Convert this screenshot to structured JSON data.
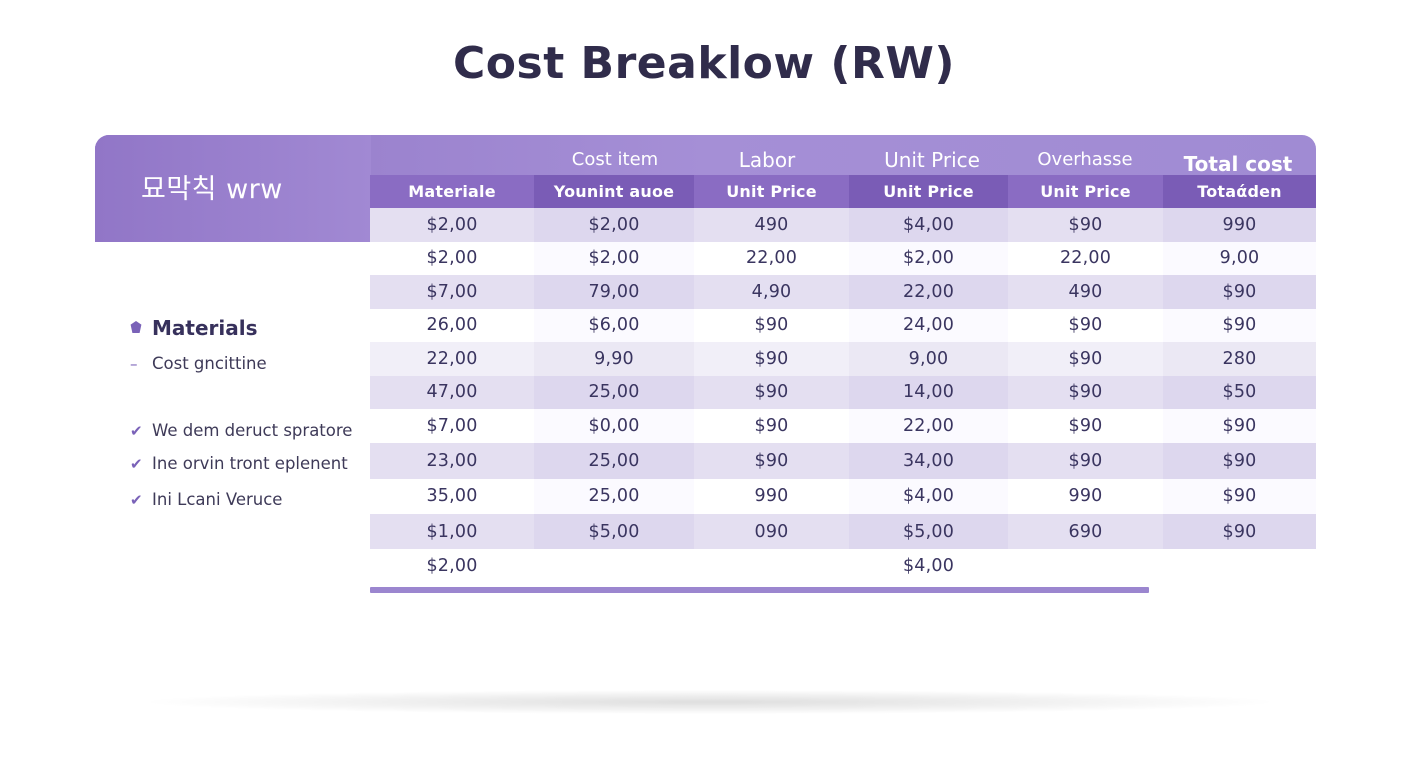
{
  "title": "Cost Breaklow (RW)",
  "card": {
    "label": "묘막칙 wrw"
  },
  "group_headers": [
    "Cost item",
    "Labor",
    "Unit Price",
    "Overhasse",
    "Total cost"
  ],
  "sub_headers": [
    "Materiale",
    "Younint auoe",
    "Unit Price",
    "Unit Price",
    "Unit Price",
    "Totaάden"
  ],
  "rows": [
    [
      "$2,00",
      "$2,00",
      "490",
      "$4,00",
      "$90",
      "990"
    ],
    [
      "$2,00",
      "$2,00",
      "22,00",
      "$2,00",
      "22,00",
      "9,00"
    ],
    [
      "$7,00",
      "79,00",
      "4,90",
      "22,00",
      "490",
      "$90"
    ],
    [
      "26,00",
      "$6,00",
      "$90",
      "24,00",
      "$90",
      "$90"
    ],
    [
      "22,00",
      "9,90",
      "$90",
      "9,00",
      "$90",
      "280"
    ],
    [
      "47,00",
      "25,00",
      "$90",
      "14,00",
      "$90",
      "$50"
    ],
    [
      "$7,00",
      "$0,00",
      "$90",
      "22,00",
      "$90",
      "$90"
    ],
    [
      "23,00",
      "25,00",
      "$90",
      "34,00",
      "$90",
      "$90"
    ],
    [
      "35,00",
      "25,00",
      "990",
      "$4,00",
      "990",
      "$90"
    ],
    [
      "$1,00",
      "$5,00",
      "090",
      "$5,00",
      "690",
      "$90"
    ],
    [
      "$2,00",
      "",
      "",
      "$4,00",
      "",
      ""
    ]
  ],
  "sidebar": {
    "heading": "Materials",
    "items": [
      {
        "mark": "dash",
        "label": "Cost gncittine"
      },
      {
        "mark": "check",
        "label": "We dem deruct spratore"
      },
      {
        "mark": "check",
        "label": "Ine orvin tront eplenent"
      },
      {
        "mark": "check",
        "label": "Ini Lcani Veruce"
      }
    ]
  },
  "colors": {
    "header_band": "#9b80cd",
    "sub_header": "#8a6cc3",
    "row_shade": "#e4dff1",
    "title": "#302c4b"
  }
}
